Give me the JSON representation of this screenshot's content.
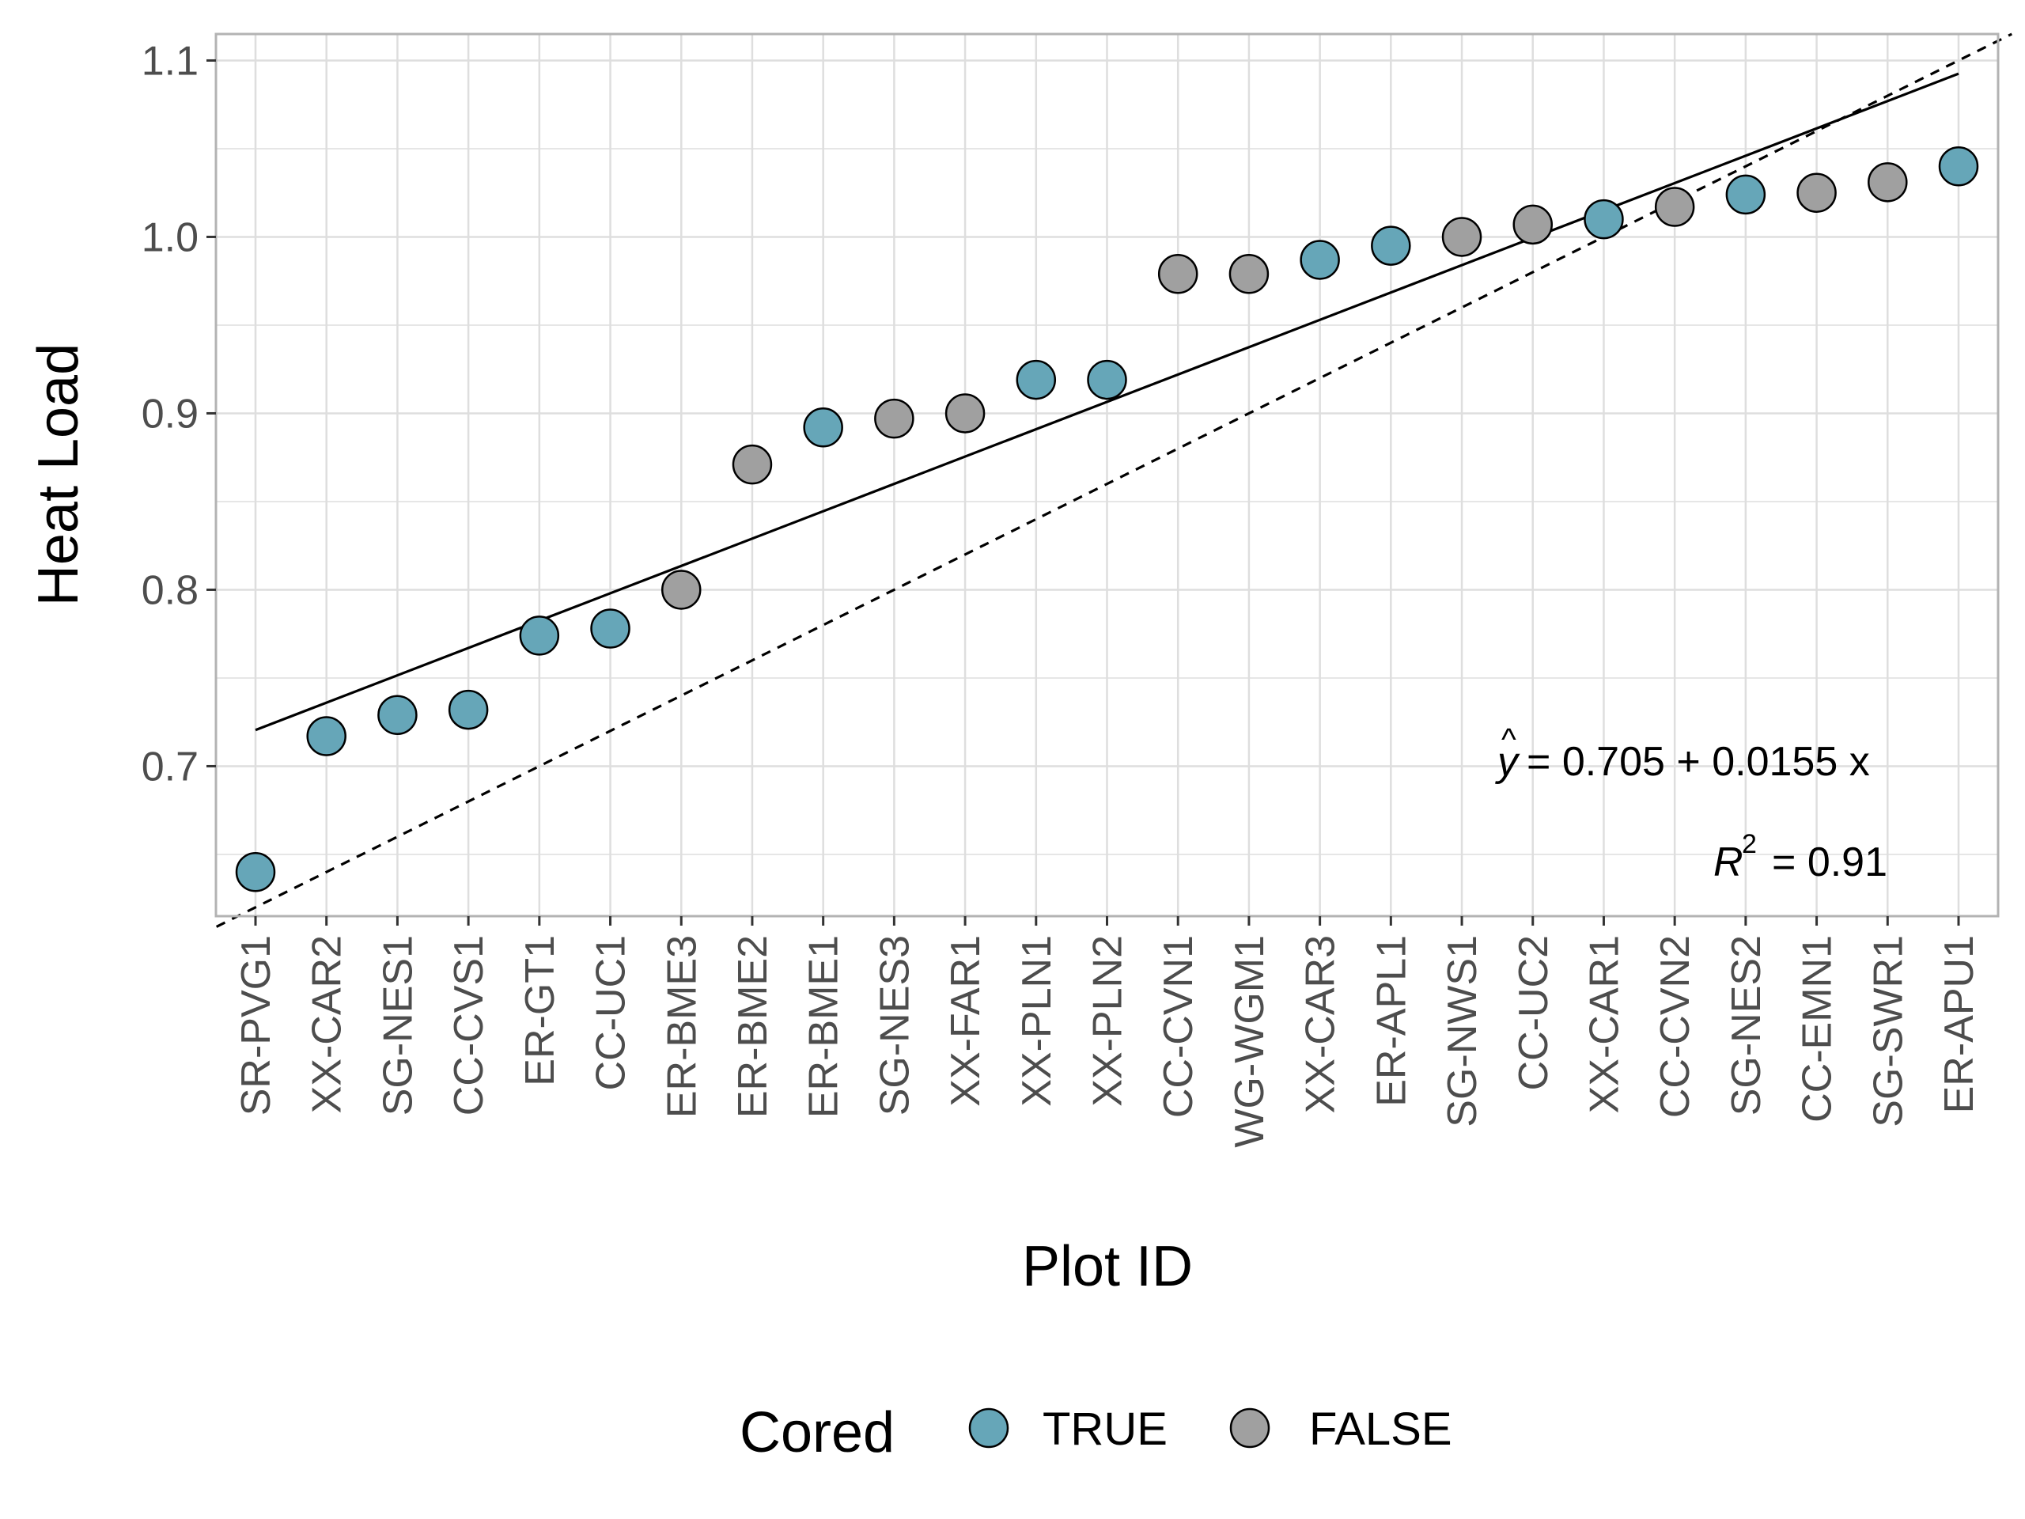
{
  "chart_data": {
    "type": "scatter",
    "xlabel": "Plot ID",
    "ylabel": "Heat Load",
    "ylim": [
      0.615,
      1.115
    ],
    "yticks": [
      "0.7",
      "0.8",
      "0.9",
      "1.0",
      "1.1"
    ],
    "grid": true,
    "legend": {
      "title": "Cored",
      "placement": "bottom",
      "entries": [
        {
          "label": "TRUE",
          "color": "#66a6b8"
        },
        {
          "label": "FALSE",
          "color": "#a0a0a0"
        }
      ]
    },
    "categories": [
      "SR-PVG1",
      "XX-CAR2",
      "SG-NES1",
      "CC-CVS1",
      "ER-GT1",
      "CC-UC1",
      "ER-BME3",
      "ER-BME2",
      "ER-BME1",
      "SG-NES3",
      "XX-FAR1",
      "XX-PLN1",
      "XX-PLN2",
      "CC-CVN1",
      "WG-WGM1",
      "XX-CAR3",
      "ER-APL1",
      "SG-NWS1",
      "CC-UC2",
      "XX-CAR1",
      "CC-CVN2",
      "SG-NES2",
      "CC-EMN1",
      "SG-SWR1",
      "ER-APU1"
    ],
    "values": [
      0.64,
      0.717,
      0.729,
      0.732,
      0.774,
      0.778,
      0.8,
      0.871,
      0.892,
      0.897,
      0.9,
      0.919,
      0.919,
      0.979,
      0.979,
      0.987,
      0.995,
      1.0,
      1.007,
      1.01,
      1.017,
      1.024,
      1.025,
      1.031,
      1.04
    ],
    "cored": [
      true,
      true,
      true,
      true,
      true,
      true,
      false,
      false,
      true,
      false,
      false,
      true,
      true,
      false,
      false,
      true,
      true,
      false,
      false,
      true,
      false,
      true,
      false,
      false,
      true
    ],
    "regression": {
      "intercept": 0.705,
      "slope": 0.0155,
      "style": "solid"
    },
    "reference_line": {
      "intercept": 0.6,
      "slope": 0.02,
      "style": "dashed"
    },
    "annotations": {
      "equation": {
        "lhs": "y",
        "hat": "^",
        "rhs": "= 0.705 + 0.0155 x"
      },
      "r2": {
        "lhs": "R",
        "sup": "2",
        "rhs": "= 0.91"
      }
    }
  }
}
